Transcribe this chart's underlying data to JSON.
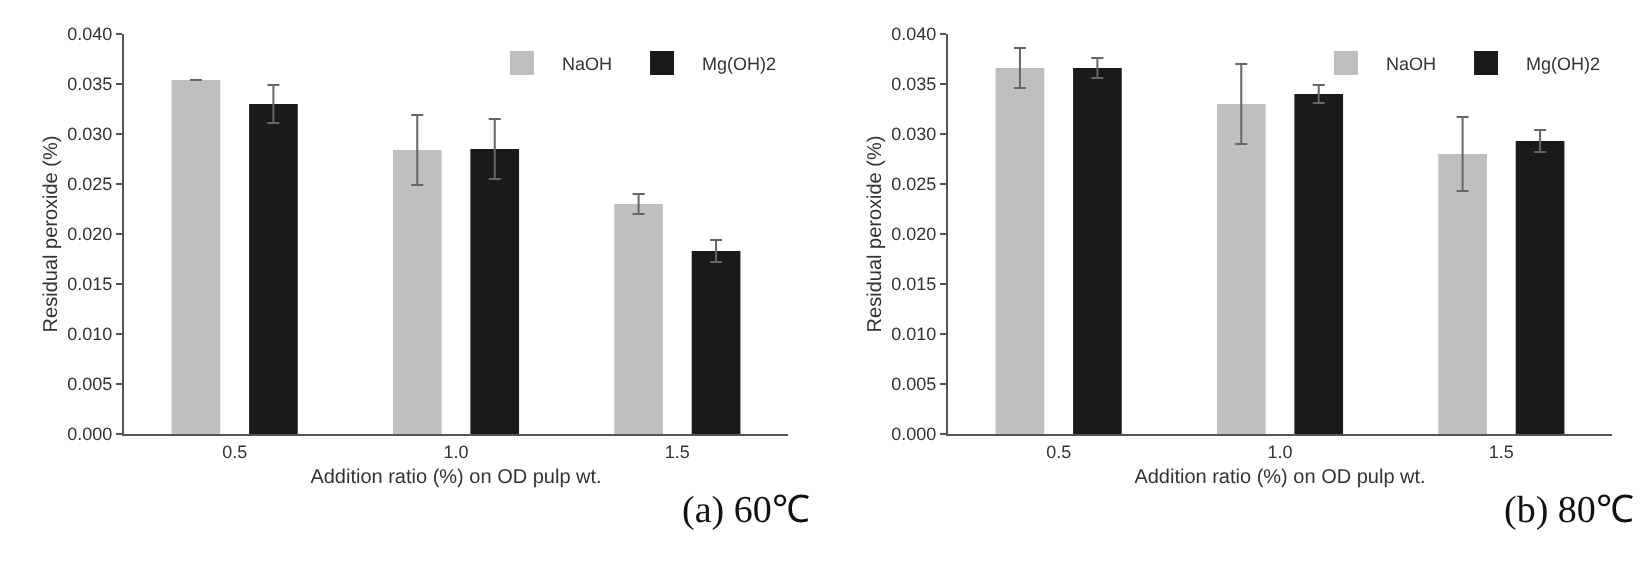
{
  "chart_data": [
    {
      "type": "bar",
      "xlabel": "Addition ratio (%) on OD pulp wt.",
      "ylabel": "Residual peroxide (%)",
      "annotations": [
        "(a) 60℃"
      ],
      "categories": [
        "0.5",
        "1.0",
        "1.5"
      ],
      "ylim": [
        0,
        0.04
      ],
      "yticks": [
        {
          "value": 0,
          "label": "0.000"
        },
        {
          "value": 0.005,
          "label": "0.005"
        },
        {
          "value": 0.01,
          "label": "0.010"
        },
        {
          "value": 0.015,
          "label": "0.015"
        },
        {
          "value": 0.02,
          "label": "0.020"
        },
        {
          "value": 0.025,
          "label": "0.025"
        },
        {
          "value": 0.03,
          "label": "0.030"
        },
        {
          "value": 0.035,
          "label": "0.035"
        },
        {
          "value": 0.04,
          "label": "0.040"
        }
      ],
      "grid": false,
      "legend": "top right",
      "series": [
        {
          "name": "NaOH",
          "color": "#bfbfbf",
          "values": [
            0.0354,
            0.0284,
            0.023
          ],
          "errors": [
            null,
            0.0035,
            0.001
          ]
        },
        {
          "name": "Mg(OH)2",
          "color": "#1a1a1a",
          "values": [
            0.033,
            0.0285,
            0.0183
          ],
          "errors": [
            0.0019,
            0.003,
            0.0011
          ]
        }
      ]
    },
    {
      "type": "bar",
      "xlabel": "Addition ratio (%) on OD pulp wt.",
      "ylabel": "Residual peroxide (%)",
      "annotations": [
        "(b) 80℃"
      ],
      "categories": [
        "0.5",
        "1.0",
        "1.5"
      ],
      "ylim": [
        0,
        0.04
      ],
      "yticks": [
        {
          "value": 0,
          "label": "0.000"
        },
        {
          "value": 0.005,
          "label": "0.005"
        },
        {
          "value": 0.01,
          "label": "0.010"
        },
        {
          "value": 0.015,
          "label": "0.015"
        },
        {
          "value": 0.02,
          "label": "0.020"
        },
        {
          "value": 0.025,
          "label": "0.025"
        },
        {
          "value": 0.03,
          "label": "0.030"
        },
        {
          "value": 0.035,
          "label": "0.035"
        },
        {
          "value": 0.04,
          "label": "0.040"
        }
      ],
      "grid": false,
      "legend": "top right",
      "series": [
        {
          "name": "NaOH",
          "color": "#bfbfbf",
          "values": [
            0.0366,
            0.033,
            0.028
          ],
          "errors": [
            0.002,
            0.004,
            0.0037
          ]
        },
        {
          "name": "Mg(OH)2",
          "color": "#1a1a1a",
          "values": [
            0.0366,
            0.034,
            0.0293
          ],
          "errors": [
            0.001,
            0.0009,
            0.0011
          ]
        }
      ]
    }
  ]
}
